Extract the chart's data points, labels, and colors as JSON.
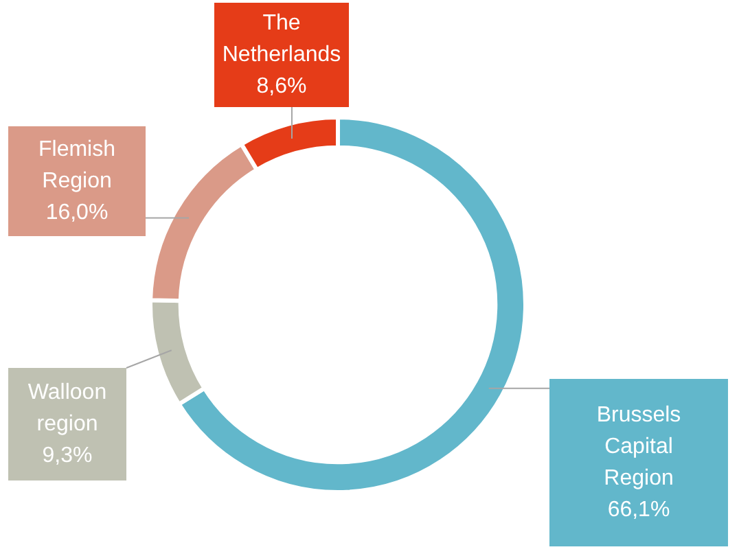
{
  "chart_data": {
    "type": "donut",
    "categories": [
      "Brussels Capital Region",
      "Walloon region",
      "Flemish Region",
      "The Netherlands"
    ],
    "values": [
      66.1,
      9.3,
      16.0,
      8.6
    ],
    "colors": [
      "#62b7cb",
      "#bfc1b2",
      "#da9a88",
      "#e53c18"
    ],
    "value_labels": [
      "66,1%",
      "9,3%",
      "16,0%",
      "8,6%"
    ],
    "legend": false
  }
}
